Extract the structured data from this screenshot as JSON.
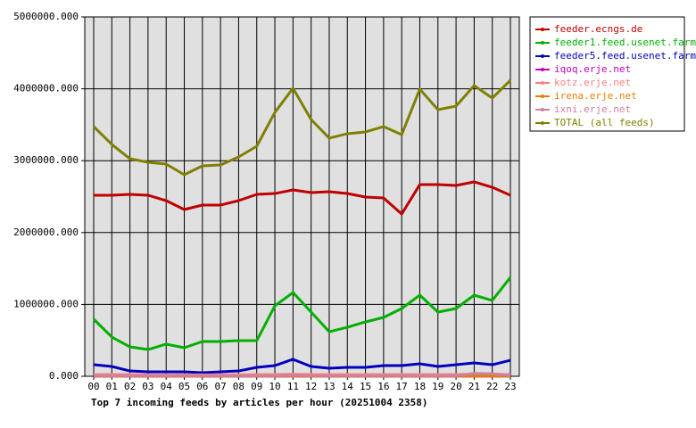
{
  "chart_data": {
    "type": "line",
    "title": "Top 7 incoming feeds by articles per hour (20251004 2358)",
    "categories": [
      "00",
      "01",
      "02",
      "03",
      "04",
      "05",
      "06",
      "07",
      "08",
      "09",
      "10",
      "11",
      "12",
      "13",
      "14",
      "15",
      "16",
      "17",
      "18",
      "19",
      "20",
      "21",
      "22",
      "23"
    ],
    "series": [
      {
        "name": "feeder.ecngs.de",
        "color": "#c00000",
        "values": [
          2519000,
          2519000,
          2531000,
          2519000,
          2444000,
          2320000,
          2382000,
          2382000,
          2444000,
          2531000,
          2543000,
          2593000,
          2556000,
          2568000,
          2543000,
          2494000,
          2481000,
          2258000,
          2667000,
          2667000,
          2655000,
          2705000,
          2630000,
          2519000
        ]
      },
      {
        "name": "feeder1.feed.usenet.farm",
        "color": "#00b000",
        "values": [
          794000,
          546000,
          409000,
          372000,
          447000,
          397000,
          484000,
          484000,
          496000,
          496000,
          980000,
          1166000,
          893000,
          620000,
          682000,
          757000,
          819000,
          943000,
          1129000,
          893000,
          943000,
          1129000,
          1055000,
          1377000
        ]
      },
      {
        "name": "feeder5.feed.usenet.farm",
        "color": "#0000c0",
        "values": [
          161000,
          136000,
          74000,
          62000,
          62000,
          62000,
          50000,
          62000,
          74000,
          124000,
          149000,
          236000,
          136000,
          112000,
          124000,
          124000,
          149000,
          149000,
          174000,
          136000,
          161000,
          186000,
          161000,
          223000
        ]
      },
      {
        "name": "iqoq.erje.net",
        "color": "#c000c0",
        "values": [
          2000,
          2000,
          2000,
          2000,
          2000,
          2000,
          2000,
          2000,
          2000,
          2000,
          2000,
          2000,
          2000,
          2000,
          2000,
          2000,
          2000,
          2000,
          2000,
          2000,
          2000,
          2000,
          2000,
          2000
        ]
      },
      {
        "name": "kotz.erje.net",
        "color": "#ff8080",
        "values": [
          25000,
          25000,
          25000,
          20000,
          20000,
          20000,
          20000,
          20000,
          20000,
          25000,
          25000,
          30000,
          25000,
          25000,
          25000,
          25000,
          25000,
          25000,
          25000,
          25000,
          25000,
          30000,
          30000,
          25000
        ]
      },
      {
        "name": "irena.erje.net",
        "color": "#e08000",
        "values": [
          3000,
          3000,
          3000,
          3000,
          3000,
          3000,
          3000,
          3000,
          3000,
          3000,
          3000,
          3000,
          3000,
          3000,
          3000,
          3000,
          3000,
          3000,
          3000,
          3000,
          3000,
          3000,
          3000,
          3000
        ]
      },
      {
        "name": "ixni.erje.net",
        "color": "#d080a0",
        "values": [
          10000,
          10000,
          10000,
          10000,
          10000,
          10000,
          10000,
          10000,
          10000,
          10000,
          10000,
          15000,
          10000,
          10000,
          10000,
          10000,
          10000,
          10000,
          10000,
          10000,
          10000,
          40000,
          35000,
          10000
        ]
      },
      {
        "name": "TOTAL (all feeds)",
        "color": "#808000",
        "values": [
          3474000,
          3226000,
          3027000,
          2978000,
          2953000,
          2804000,
          2928000,
          2940000,
          3052000,
          3201000,
          3672000,
          4007000,
          3573000,
          3313000,
          3375000,
          3400000,
          3474000,
          3362000,
          3995000,
          3710000,
          3759000,
          4045000,
          3871000,
          4119000
        ]
      }
    ],
    "ylim": [
      0,
      5000000
    ],
    "yticks": [
      {
        "value": 0,
        "label": "0.000"
      },
      {
        "value": 1000000,
        "label": "1000000.000"
      },
      {
        "value": 2000000,
        "label": "2000000.000"
      },
      {
        "value": 3000000,
        "label": "3000000.000"
      },
      {
        "value": 4000000,
        "label": "4000000.000"
      },
      {
        "value": 5000000,
        "label": "5000000.000"
      }
    ],
    "grid": true
  }
}
